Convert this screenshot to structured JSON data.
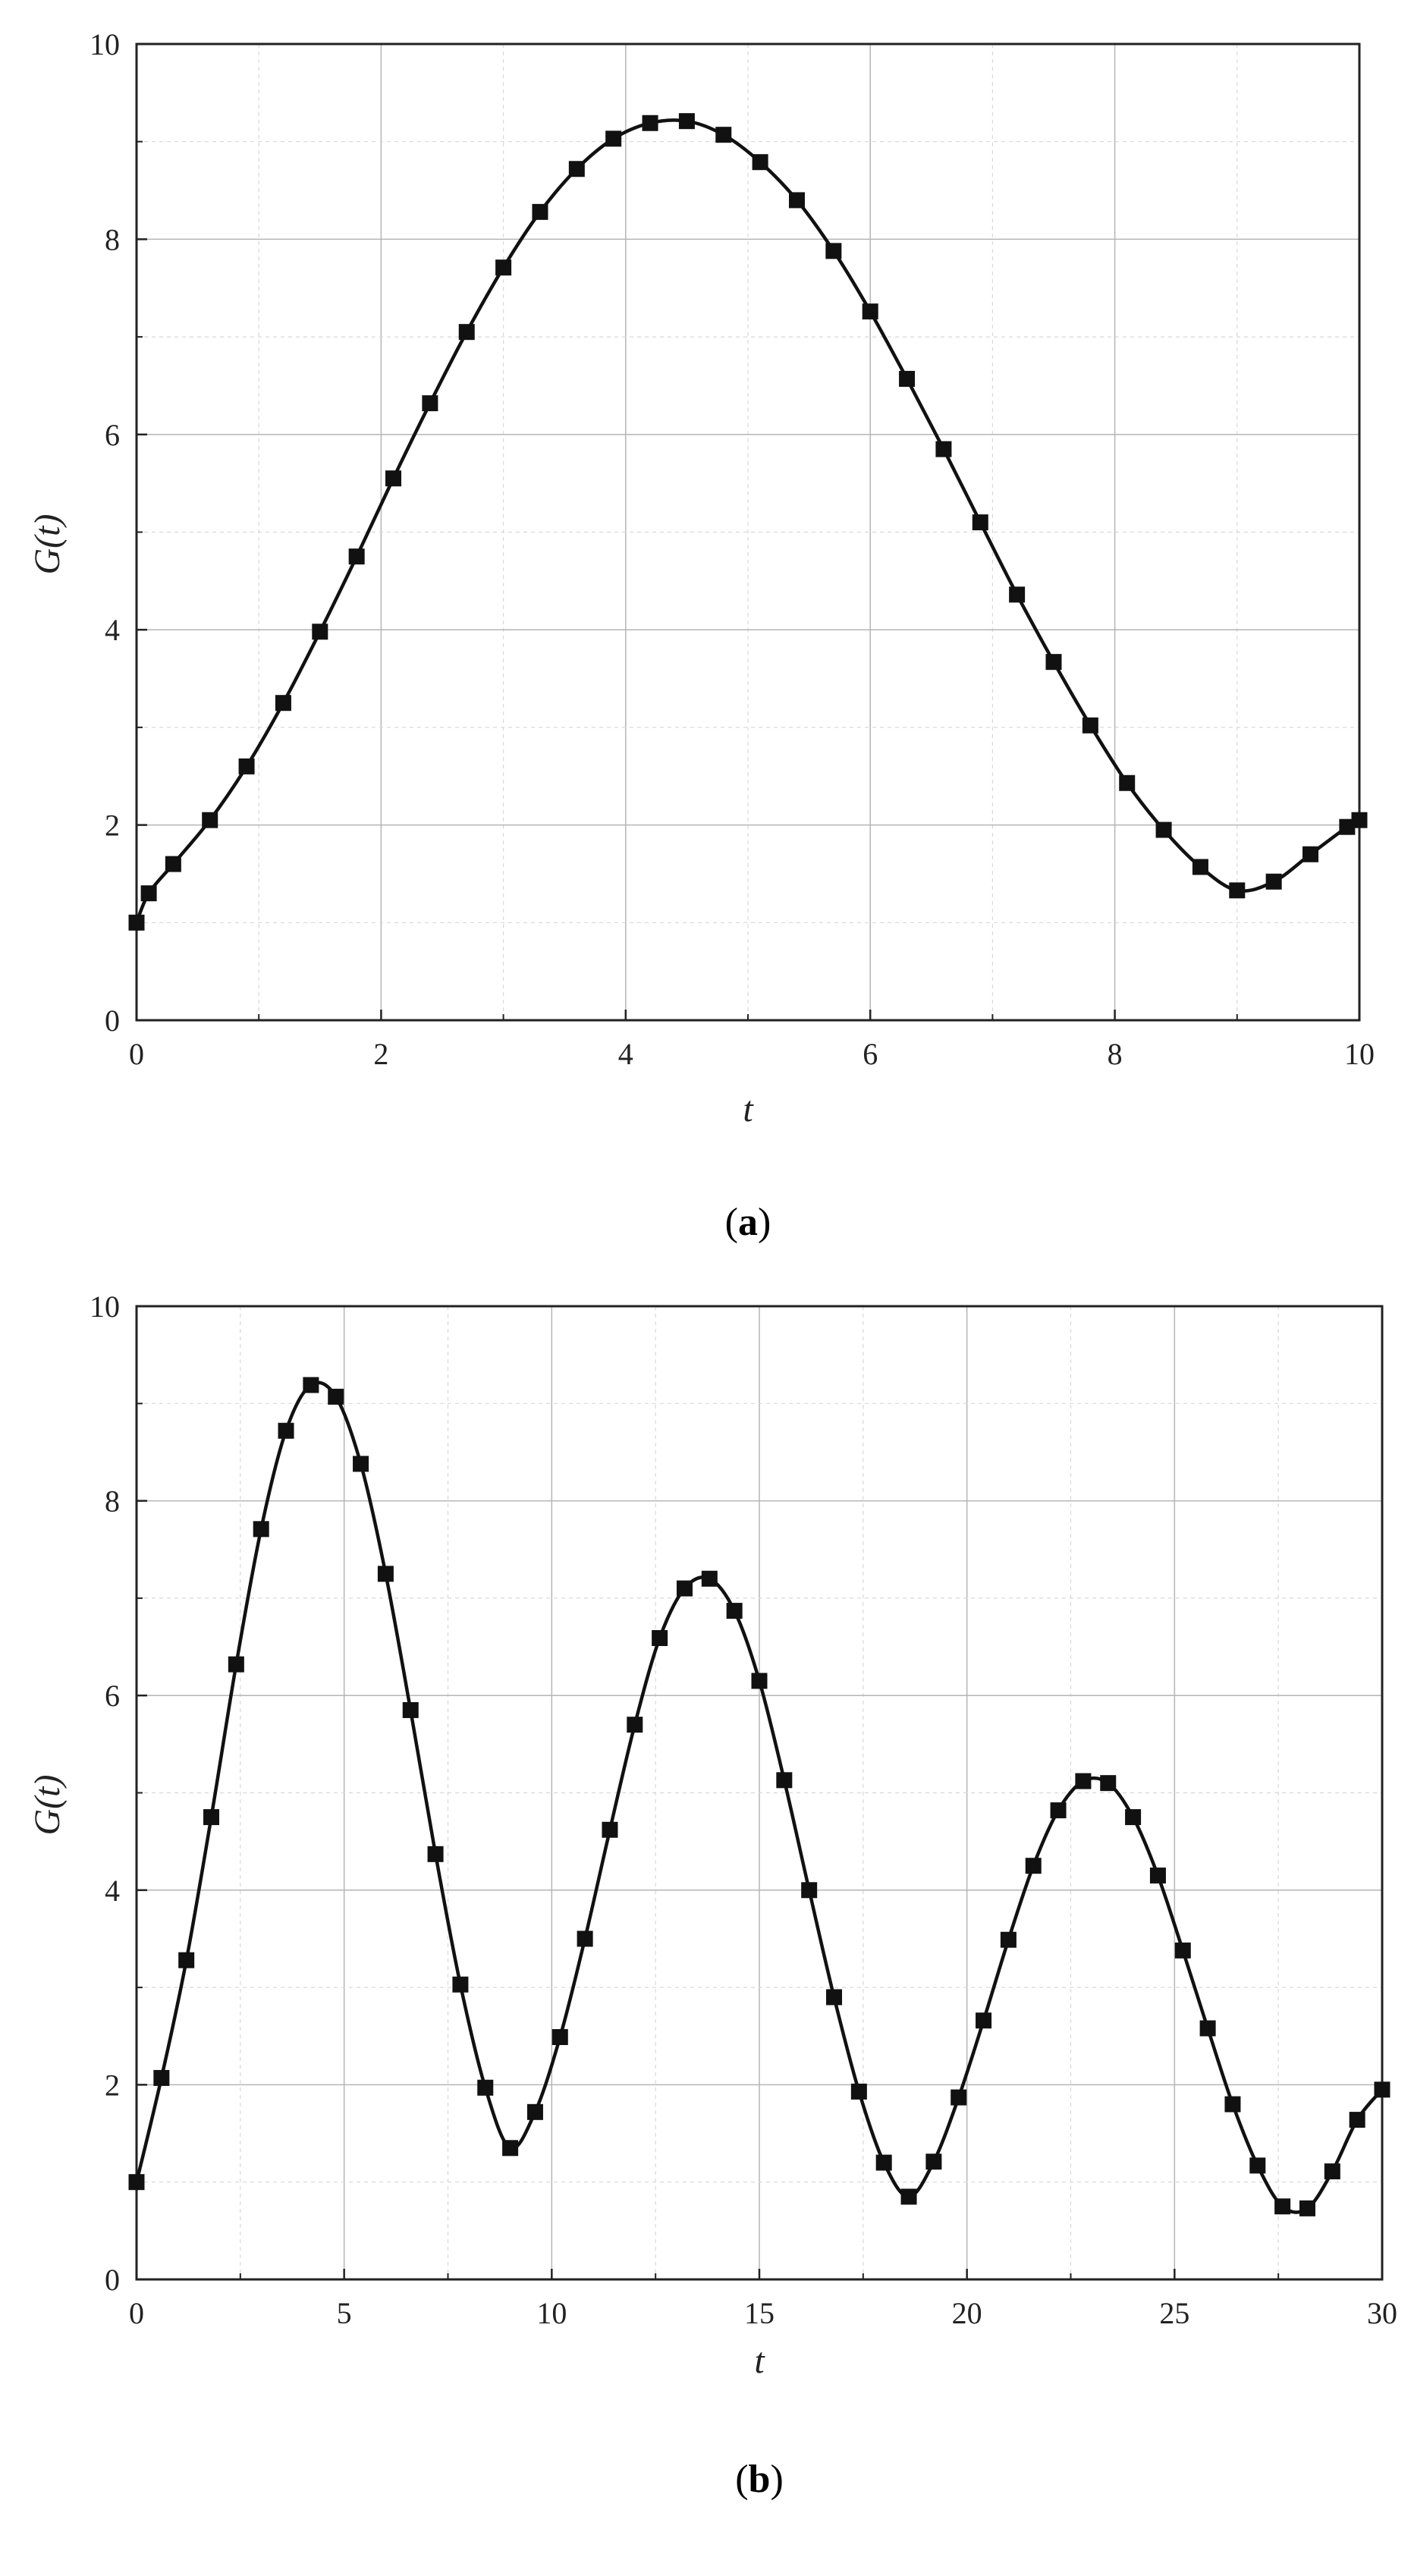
{
  "chart_data": [
    {
      "panel": "(a)",
      "panel_open": "(",
      "panel_letter": "a",
      "panel_close": ")",
      "type": "line",
      "xlabel": "t",
      "ylabel": "G(t)",
      "xlim": [
        0,
        10
      ],
      "ylim": [
        0,
        10
      ],
      "xticks": [
        "0",
        "2",
        "4",
        "6",
        "8",
        "10"
      ],
      "yticks": [
        "0",
        "2",
        "4",
        "6",
        "8",
        "10"
      ],
      "grid": true,
      "series": [
        {
          "style": "line-with-square-markers",
          "color": "#111111",
          "x": [
            0,
            0.1,
            0.3,
            0.6,
            0.9,
            1.2,
            1.5,
            1.8,
            2.1,
            2.4,
            2.7,
            3.0,
            3.3,
            3.6,
            3.9,
            4.2,
            4.5,
            4.8,
            5.1,
            5.4,
            5.7,
            6.0,
            6.3,
            6.6,
            6.9,
            7.2,
            7.5,
            7.8,
            8.1,
            8.4,
            8.7,
            9.0,
            9.3,
            9.6,
            9.9,
            10.0
          ],
          "y": [
            1.0,
            1.3,
            1.6,
            2.05,
            2.6,
            3.25,
            3.98,
            4.75,
            5.55,
            6.32,
            7.05,
            7.71,
            8.28,
            8.72,
            9.03,
            9.19,
            9.21,
            9.07,
            8.79,
            8.4,
            7.88,
            7.26,
            6.57,
            5.85,
            5.1,
            4.36,
            3.67,
            3.02,
            2.43,
            1.95,
            1.57,
            1.33,
            1.42,
            1.7,
            1.98,
            2.05
          ]
        }
      ]
    },
    {
      "panel": "(b)",
      "panel_open": "(",
      "panel_letter": "b",
      "panel_close": ")",
      "type": "line",
      "xlabel": "t",
      "ylabel": "G(t)",
      "xlim": [
        0,
        30
      ],
      "ylim": [
        0,
        10
      ],
      "xticks": [
        "0",
        "5",
        "10",
        "15",
        "20",
        "25",
        "30"
      ],
      "yticks": [
        "0",
        "2",
        "4",
        "6",
        "8",
        "10"
      ],
      "grid": true,
      "series": [
        {
          "style": "line-with-square-markers",
          "color": "#111111",
          "x": [
            0,
            0.6,
            1.2,
            1.8,
            2.4,
            3.0,
            3.6,
            4.2,
            4.8,
            5.4,
            6.0,
            6.6,
            7.2,
            7.8,
            8.4,
            9.0,
            9.6,
            10.2,
            10.8,
            11.4,
            12.0,
            12.6,
            13.2,
            13.8,
            14.4,
            15.0,
            15.6,
            16.2,
            16.8,
            17.4,
            18.0,
            18.6,
            19.2,
            19.8,
            20.4,
            21.0,
            21.6,
            22.2,
            22.8,
            23.4,
            24.0,
            24.6,
            25.2,
            25.8,
            26.4,
            27.0,
            27.6,
            28.2,
            28.8,
            29.4,
            30.0
          ],
          "y": [
            1.0,
            2.07,
            3.28,
            4.75,
            6.32,
            7.71,
            8.72,
            9.19,
            9.07,
            8.38,
            7.25,
            5.85,
            4.37,
            3.03,
            1.97,
            1.35,
            1.72,
            2.49,
            3.5,
            4.62,
            5.7,
            6.59,
            7.1,
            7.2,
            6.87,
            6.15,
            5.13,
            4.0,
            2.9,
            1.93,
            1.2,
            0.85,
            1.21,
            1.87,
            2.66,
            3.49,
            4.25,
            4.82,
            5.12,
            5.1,
            4.75,
            4.15,
            3.38,
            2.58,
            1.8,
            1.17,
            0.75,
            0.73,
            1.11,
            1.64,
            1.95
          ]
        }
      ]
    }
  ]
}
